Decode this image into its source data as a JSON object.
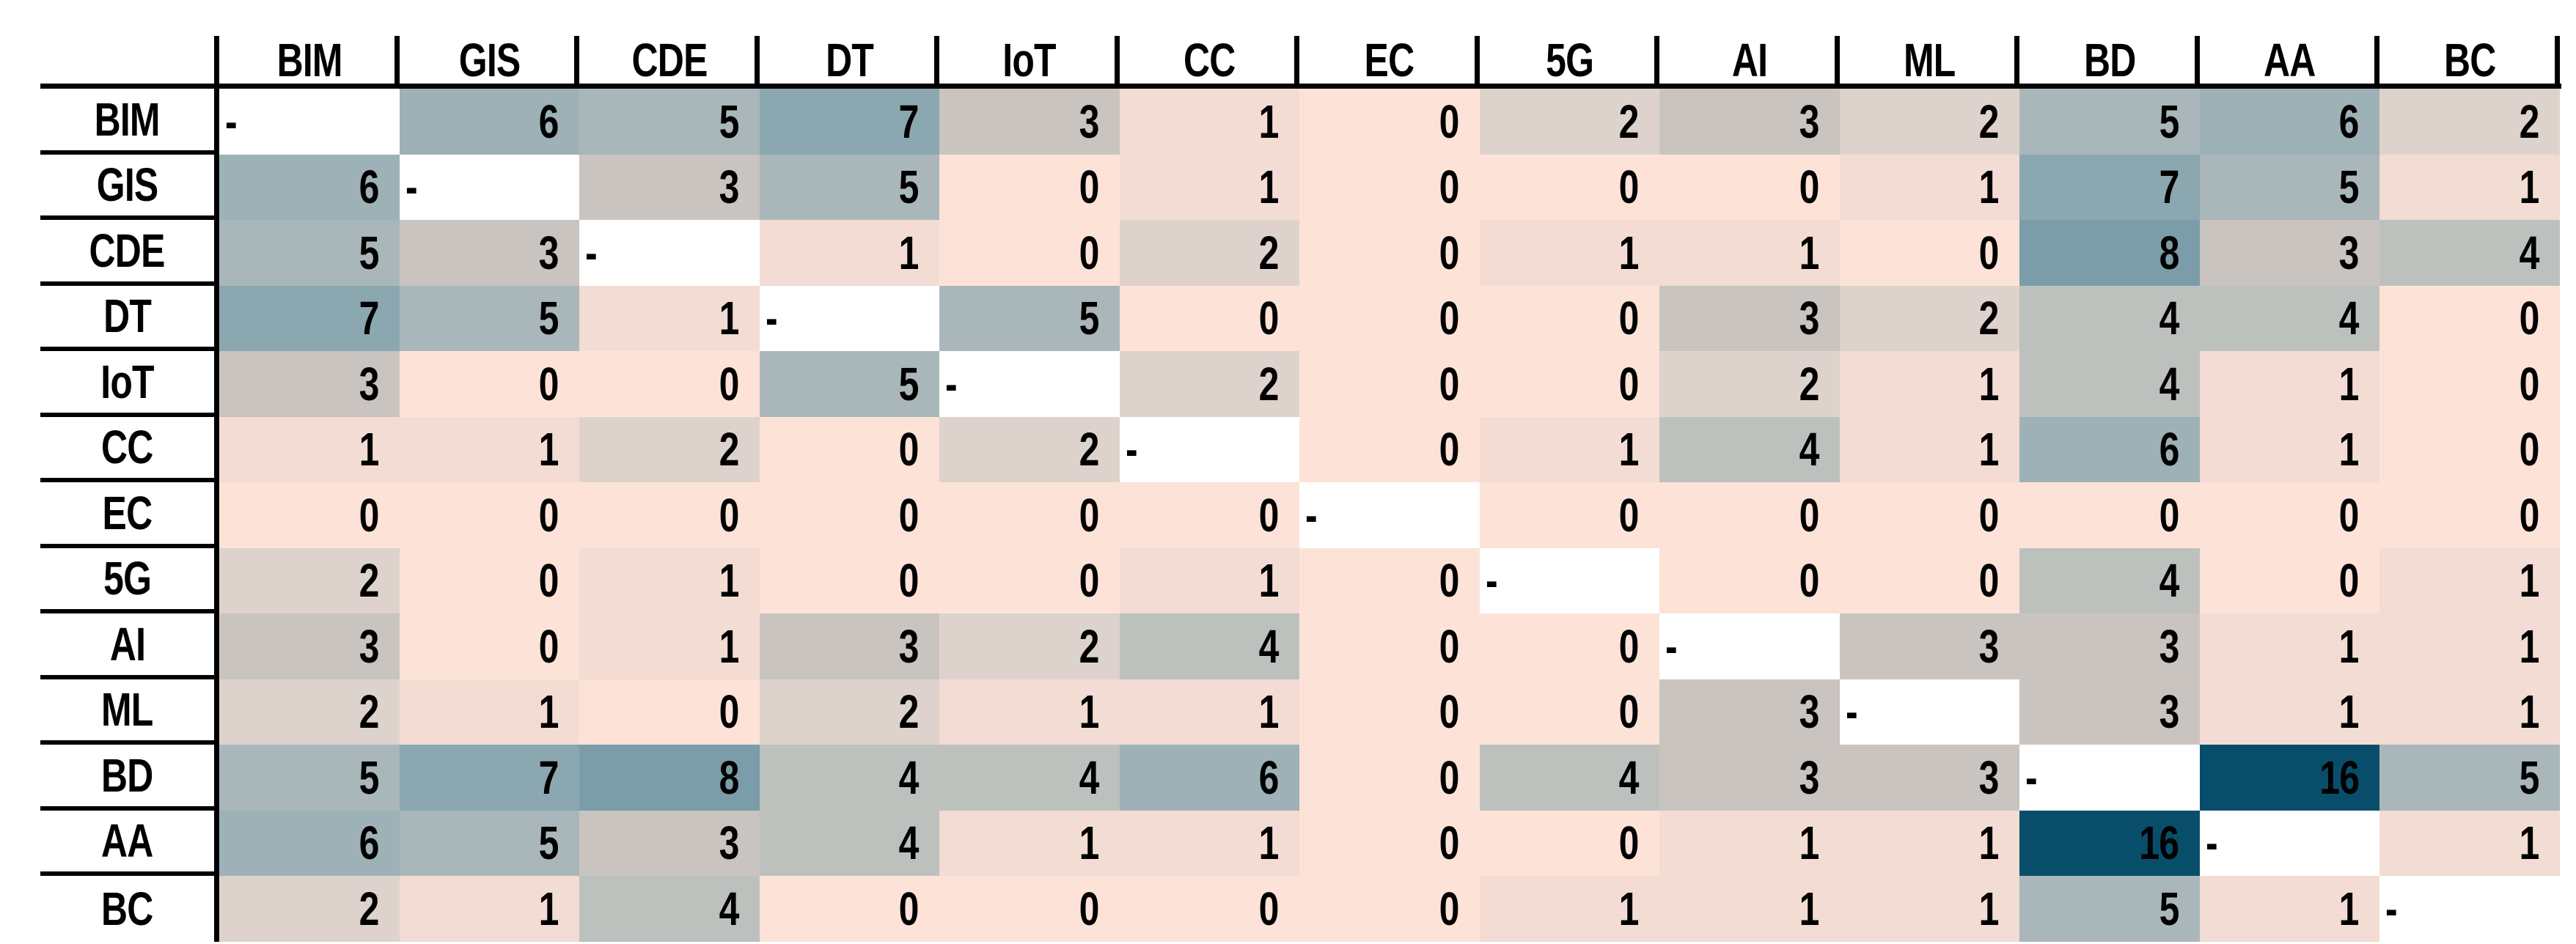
{
  "chart_data": {
    "type": "heatmap",
    "description": "Symmetric co-occurrence matrix of technology acronyms; cell color scales from light pink (low) through gray to dark blue (high), diagonal cells are white and marked with a dash",
    "labels": [
      "BIM",
      "GIS",
      "CDE",
      "DT",
      "IoT",
      "CC",
      "EC",
      "5G",
      "AI",
      "ML",
      "BD",
      "AA",
      "BC"
    ],
    "matrix": [
      [
        null,
        6,
        5,
        7,
        3,
        1,
        0,
        2,
        3,
        2,
        5,
        6,
        2
      ],
      [
        6,
        null,
        3,
        5,
        0,
        1,
        0,
        0,
        0,
        1,
        7,
        5,
        1
      ],
      [
        5,
        3,
        null,
        1,
        0,
        2,
        0,
        1,
        1,
        0,
        8,
        3,
        4
      ],
      [
        7,
        5,
        1,
        null,
        5,
        0,
        0,
        0,
        3,
        2,
        4,
        4,
        0
      ],
      [
        3,
        0,
        0,
        5,
        null,
        2,
        0,
        0,
        2,
        1,
        4,
        1,
        0
      ],
      [
        1,
        1,
        2,
        0,
        2,
        null,
        0,
        1,
        4,
        1,
        6,
        1,
        0
      ],
      [
        0,
        0,
        0,
        0,
        0,
        0,
        null,
        0,
        0,
        0,
        0,
        0,
        0
      ],
      [
        2,
        0,
        1,
        0,
        0,
        1,
        0,
        null,
        0,
        0,
        4,
        0,
        1
      ],
      [
        3,
        0,
        1,
        3,
        2,
        4,
        0,
        0,
        null,
        3,
        3,
        1,
        1
      ],
      [
        2,
        1,
        0,
        2,
        1,
        1,
        0,
        0,
        3,
        null,
        3,
        1,
        1
      ],
      [
        5,
        7,
        8,
        4,
        4,
        6,
        0,
        4,
        3,
        3,
        null,
        16,
        5
      ],
      [
        6,
        5,
        3,
        4,
        1,
        1,
        0,
        0,
        1,
        1,
        16,
        null,
        1
      ],
      [
        2,
        1,
        4,
        0,
        0,
        0,
        0,
        1,
        1,
        1,
        5,
        1,
        null
      ]
    ],
    "diagonal_marker": "-",
    "diagonal_background": "#FFFFFF",
    "value_range": [
      0,
      16
    ],
    "color_scale": {
      "0": "#FDE3D7",
      "1": "#F2DCD3",
      "2": "#DED3CC",
      "3": "#C9C4C0",
      "4": "#BDC1BE",
      "5": "#A9B7BA",
      "6": "#9DB1B7",
      "7": "#8BA7B0",
      "8": "#7A9DA9",
      "16": "#084E6B"
    },
    "text_color": "#000000",
    "grid_color": "#000000",
    "legend": "none",
    "grid": "off"
  }
}
